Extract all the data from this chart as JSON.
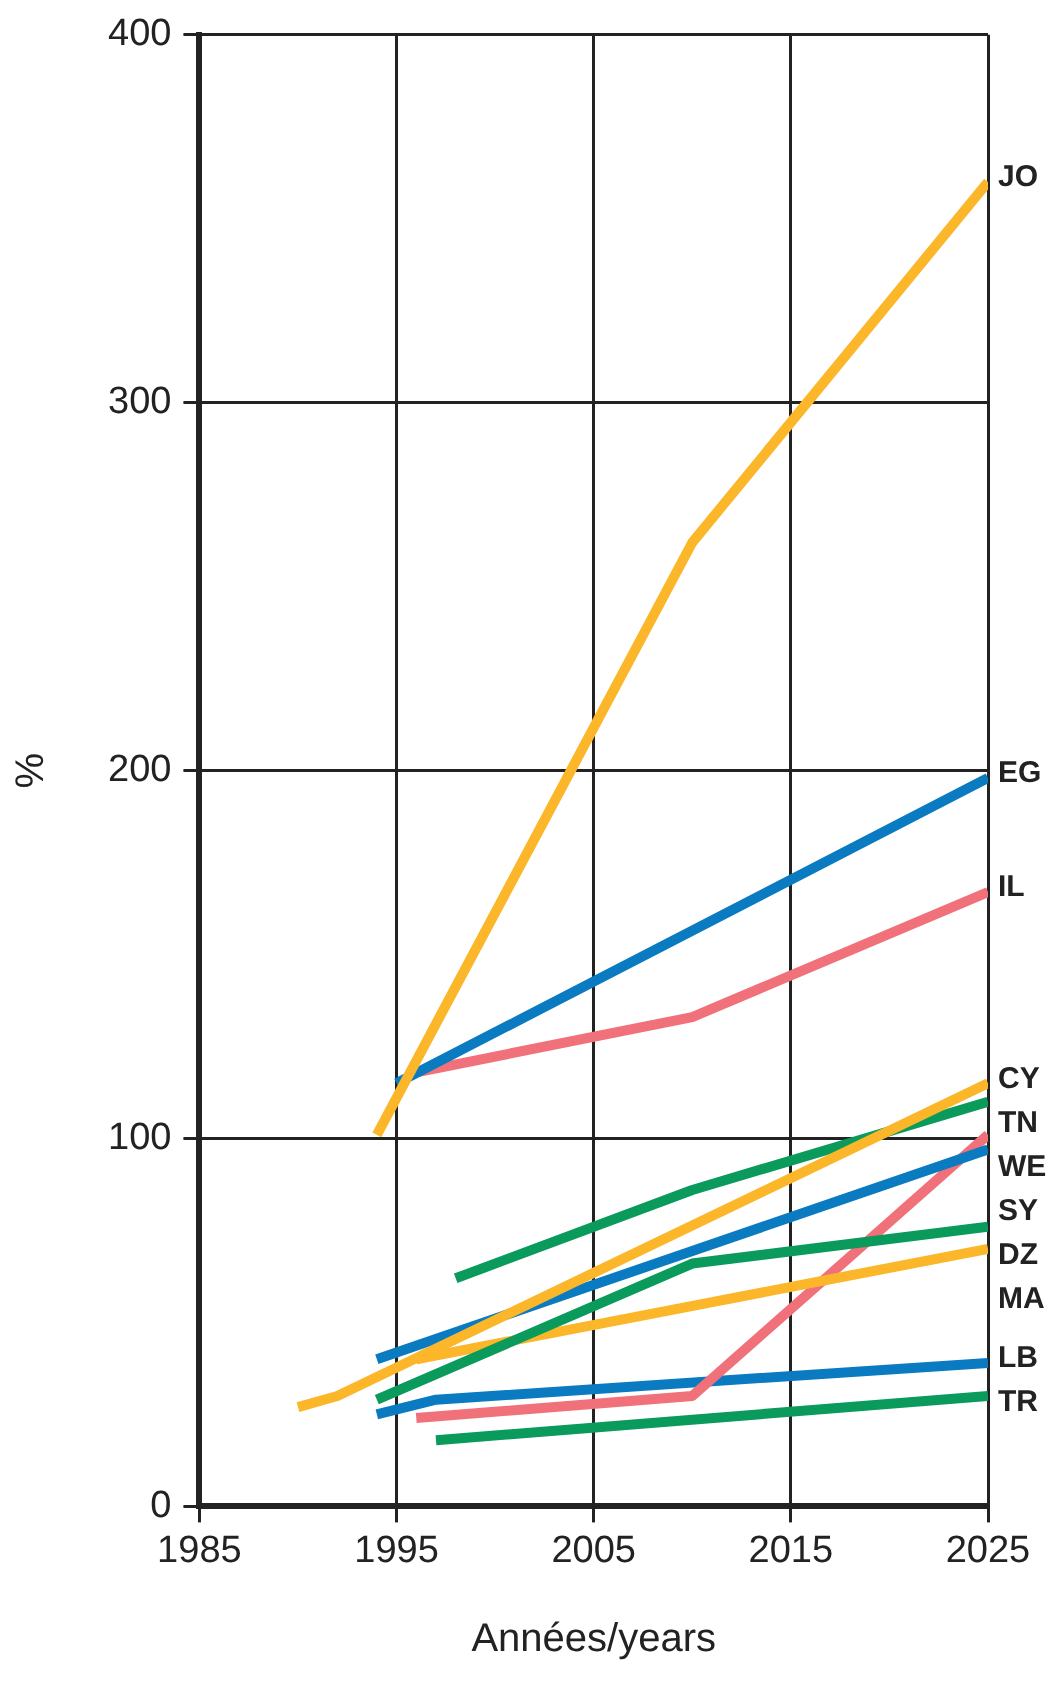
{
  "chart_data": {
    "type": "line",
    "xlabel": "Années/years",
    "ylabel": "%",
    "xlim": [
      1985,
      2025
    ],
    "xticks": [
      1985,
      1995,
      2005,
      2015,
      2025
    ],
    "ylim": [
      0,
      400
    ],
    "yticks": [
      0,
      100,
      200,
      300,
      400
    ],
    "grid": true,
    "marker": "none",
    "line_style": "solid",
    "series": [
      {
        "name": "JO",
        "color": "#fbb629",
        "x": [
          1994,
          2010,
          2025
        ],
        "values": [
          101,
          262,
          360
        ]
      },
      {
        "name": "EG",
        "color": "#0a7bc1",
        "x": [
          1995,
          2025
        ],
        "values": [
          115,
          198
        ]
      },
      {
        "name": "IL",
        "color": "#f0717a",
        "x": [
          1996,
          2010,
          2025
        ],
        "values": [
          118,
          133,
          167
        ]
      },
      {
        "name": "CY",
        "color": "#fbb629",
        "x": [
          1990,
          1992,
          2025
        ],
        "values": [
          27,
          30,
          115
        ]
      },
      {
        "name": "TN",
        "color": "#0a9a5c",
        "x": [
          1998,
          2010,
          2025
        ],
        "values": [
          62,
          86,
          110
        ]
      },
      {
        "name": "SY",
        "color": "#0a7bc1",
        "x": [
          1994,
          2025
        ],
        "values": [
          40,
          97
        ]
      },
      {
        "name": "DZ",
        "color": "#0a9a5c",
        "x": [
          1994,
          2010,
          2025
        ],
        "values": [
          29,
          66,
          76
        ]
      },
      {
        "name": "MA",
        "color": "#fbb629",
        "x": [
          1996,
          2025
        ],
        "values": [
          40,
          70
        ]
      },
      {
        "name": "WE",
        "color": "#f0717a",
        "x": [
          1996,
          2010,
          2025
        ],
        "values": [
          24,
          30,
          101
        ]
      },
      {
        "name": "LB",
        "color": "#0a7bc1",
        "x": [
          1994,
          1997,
          2025
        ],
        "values": [
          25,
          29,
          39
        ]
      },
      {
        "name": "TR",
        "color": "#0a9a5c",
        "x": [
          1997,
          2025
        ],
        "values": [
          18,
          30
        ]
      }
    ]
  }
}
